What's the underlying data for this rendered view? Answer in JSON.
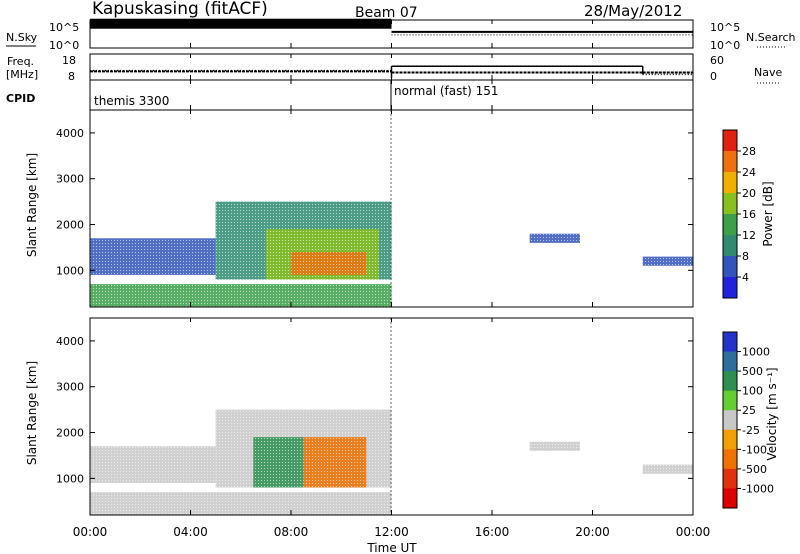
{
  "header": {
    "station": "Kapuskasing (fitACF)",
    "beam": "Beam 07",
    "date": "28/May/2012"
  },
  "top_panels": {
    "nsky_label": "N.Sky",
    "nsearch_label": "N.Search",
    "noise_ticks": [
      "10^5",
      "10^0"
    ],
    "freq_label_line1": "Freq.",
    "freq_label_line2": "[MHz]",
    "freq_ticks": [
      "18",
      "8"
    ],
    "nave_label": "Nave",
    "nave_ticks": [
      "60",
      "0"
    ],
    "cpid_label": "CPID",
    "cpid_segments": [
      {
        "name": "themis 3300",
        "start_hour": 0,
        "end_hour": 12
      },
      {
        "name": "normal (fast) 151",
        "start_hour": 12,
        "end_hour": 24
      }
    ]
  },
  "axis": {
    "x_ticks": [
      "00:00",
      "04:00",
      "08:00",
      "12:00",
      "16:00",
      "20:00",
      "00:00"
    ],
    "x_label": "Time UT",
    "y_ticks": [
      "1000",
      "2000",
      "3000",
      "4000"
    ],
    "y_label": "Slant Range [km]"
  },
  "colorbars": {
    "power": {
      "label": "Power [dB]",
      "ticks": [
        "4",
        "8",
        "12",
        "16",
        "20",
        "24",
        "28"
      ],
      "colors": [
        "#2222dd",
        "#3355bb",
        "#2e8b70",
        "#3ca04a",
        "#88c020",
        "#f0b000",
        "#f07010",
        "#e02010"
      ]
    },
    "velocity": {
      "label": "Velocity [m s⁻¹]",
      "ticks": [
        "1000",
        "500",
        "100",
        "25",
        "-25",
        "-100",
        "-500",
        "-1000"
      ],
      "colors": [
        "#2233cc",
        "#2e6e9e",
        "#2e9050",
        "#66cc33",
        "#c8c8c8",
        "#f0a000",
        "#f07000",
        "#e03010",
        "#dd0000"
      ]
    }
  },
  "chart_data": {
    "type": "heatmap",
    "title": "Kapuskasing (fitACF)",
    "subtitle": "Beam 07",
    "xlabel": "Time UT",
    "ylabel": "Slant Range [km]",
    "xlim": [
      0,
      24
    ],
    "ylim": [
      200,
      4500
    ],
    "x_unit": "hours UT",
    "panels": [
      {
        "name": "Power",
        "colorbar_label": "Power [dB]",
        "value_range": [
          0,
          30
        ],
        "regions": [
          {
            "t0": 0,
            "t1": 12,
            "r0": 200,
            "r1": 700,
            "value": 14
          },
          {
            "t0": 0,
            "t1": 5,
            "r0": 900,
            "r1": 1700,
            "value": 5
          },
          {
            "t0": 5,
            "t1": 12,
            "r0": 800,
            "r1": 2500,
            "value": 8
          },
          {
            "t0": 7,
            "t1": 11.5,
            "r0": 800,
            "r1": 1900,
            "value": 18
          },
          {
            "t0": 8,
            "t1": 11,
            "r0": 900,
            "r1": 1400,
            "value": 26
          },
          {
            "t0": 17.5,
            "t1": 19.5,
            "r0": 1600,
            "r1": 1800,
            "value": 5
          },
          {
            "t0": 22,
            "t1": 24,
            "r0": 1100,
            "r1": 1300,
            "value": 6
          }
        ]
      },
      {
        "name": "Velocity",
        "colorbar_label": "Velocity [m s⁻¹]",
        "value_range": [
          -1000,
          1000
        ],
        "regions": [
          {
            "t0": 0,
            "t1": 12,
            "r0": 200,
            "r1": 700,
            "value": 0
          },
          {
            "t0": 0,
            "t1": 5,
            "r0": 900,
            "r1": 1700,
            "value": 0
          },
          {
            "t0": 5,
            "t1": 12,
            "r0": 800,
            "r1": 2500,
            "value": 0
          },
          {
            "t0": 6.5,
            "t1": 8.5,
            "r0": 800,
            "r1": 1900,
            "value": 120
          },
          {
            "t0": 8.5,
            "t1": 11,
            "r0": 800,
            "r1": 1900,
            "value": -150
          },
          {
            "t0": 17.5,
            "t1": 19.5,
            "r0": 1600,
            "r1": 1800,
            "value": 0
          },
          {
            "t0": 22,
            "t1": 24,
            "r0": 1100,
            "r1": 1300,
            "value": 0
          }
        ]
      }
    ],
    "noise": {
      "nsky": 30000,
      "nsearch_0_12": 30000,
      "nsearch_12_24": 800
    },
    "frequency_mhz": [
      {
        "t0": 0,
        "t1": 12,
        "value": 11
      },
      {
        "t0": 12,
        "t1": 22,
        "value": 10.5
      },
      {
        "t0": 22,
        "t1": 24,
        "value": 10.5
      }
    ],
    "nave": [
      {
        "t0": 0,
        "t1": 12,
        "value": 20
      },
      {
        "t0": 12,
        "t1": 22,
        "value": 32
      },
      {
        "t0": 22,
        "t1": 24,
        "value": 10
      }
    ]
  }
}
